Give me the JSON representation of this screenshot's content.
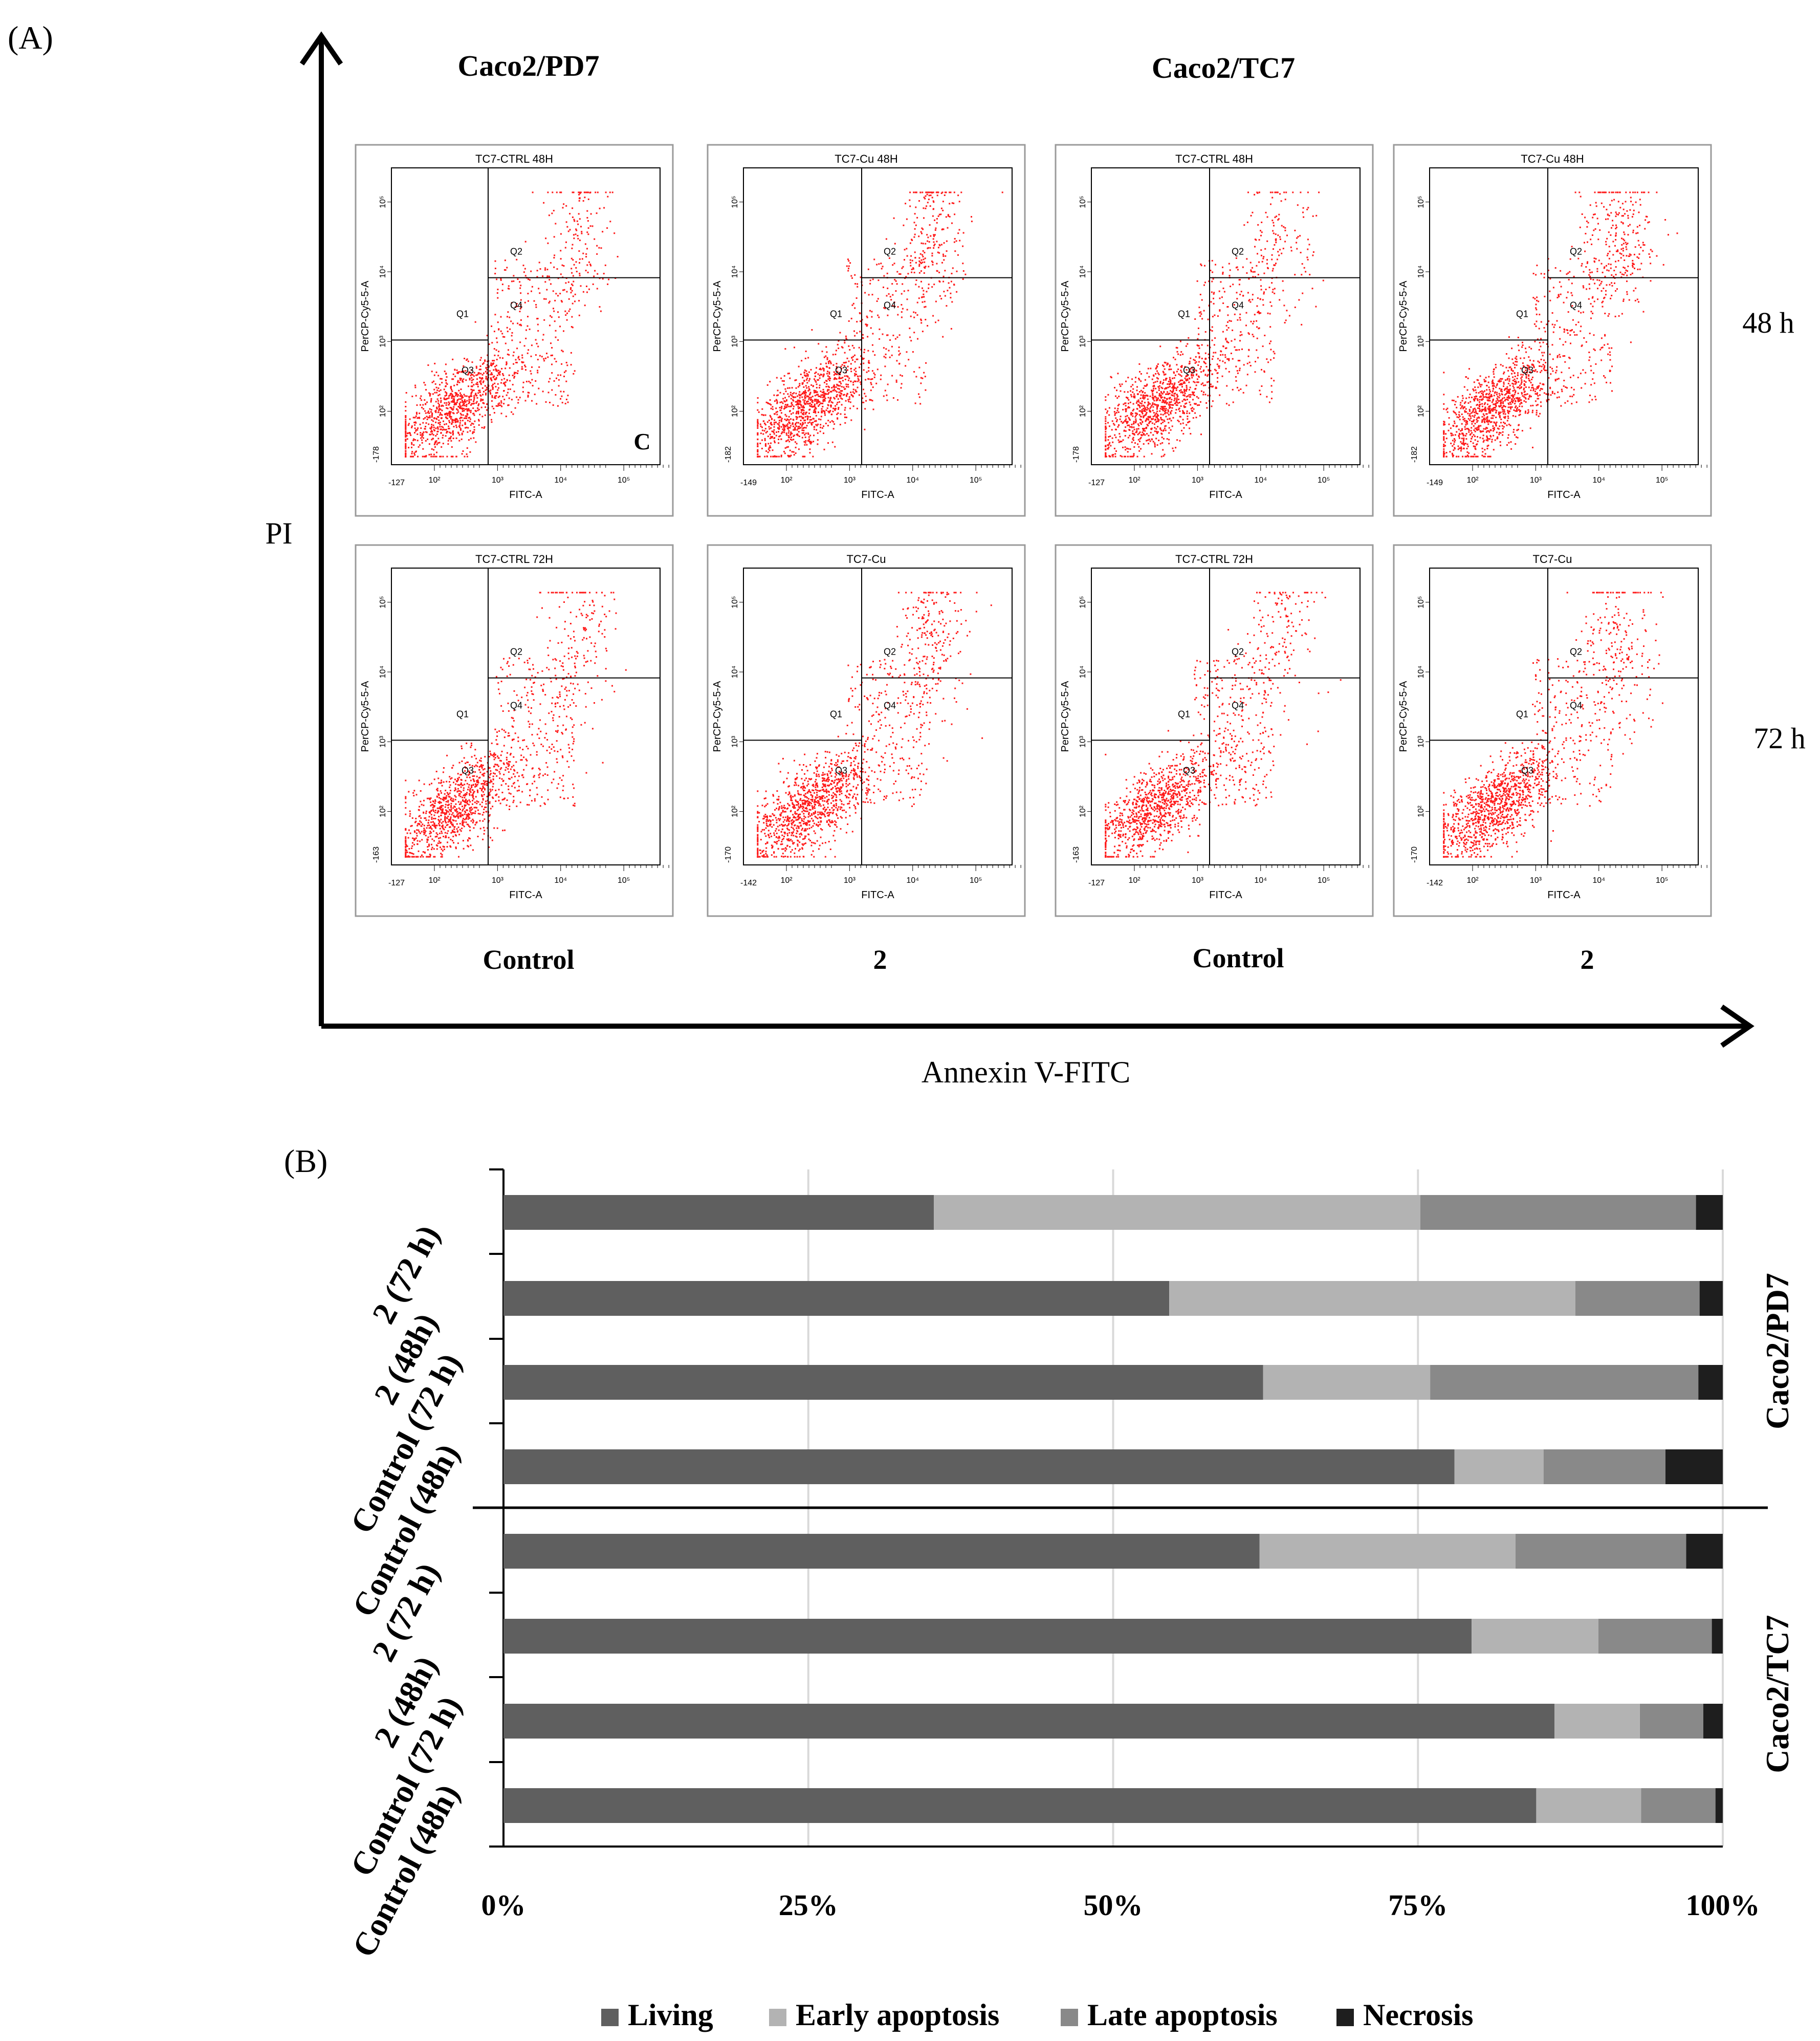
{
  "panel_a": {
    "label": "(A)",
    "group_titles": [
      "Caco2/PD7",
      "Caco2/TC7"
    ],
    "row_labels": [
      "48 h",
      "72 h"
    ],
    "column_labels": [
      "Control",
      "2",
      "Control",
      "2"
    ],
    "y_axis_label": "PI",
    "x_axis_label": "Annexin V-FITC",
    "corner_mark": "C",
    "quadrants": [
      "Q1",
      "Q2",
      "Q3",
      "Q4"
    ],
    "plot_x_axis": "FITC-A",
    "plot_y_axis": "PerCP-Cy5-5-A",
    "x_ticks": [
      "10²",
      "10³",
      "10⁴",
      "10⁵"
    ],
    "y_ticks": [
      "10²",
      "10³",
      "10⁴",
      "10⁵"
    ],
    "plots": [
      {
        "title": "TC7-CTRL 48H",
        "xmin": "-127",
        "ymin": "-178",
        "gate_x": 0.36,
        "gate_y1": 0.42,
        "gate_y2": 0.63,
        "cloud": "control"
      },
      {
        "title": "TC7-Cu 48H",
        "xmin": "-149",
        "ymin": "-182",
        "gate_x": 0.44,
        "gate_y1": 0.42,
        "gate_y2": 0.63,
        "cloud": "treated"
      },
      {
        "title": "TC7-CTRL 48H",
        "xmin": "-127",
        "ymin": "-178",
        "gate_x": 0.44,
        "gate_y1": 0.42,
        "gate_y2": 0.63,
        "cloud": "control"
      },
      {
        "title": "TC7-Cu 48H",
        "xmin": "-149",
        "ymin": "-182",
        "gate_x": 0.44,
        "gate_y1": 0.42,
        "gate_y2": 0.63,
        "cloud": "treated"
      },
      {
        "title": "TC7-CTRL 72H",
        "xmin": "-127",
        "ymin": "-163",
        "gate_x": 0.36,
        "gate_y1": 0.42,
        "gate_y2": 0.63,
        "cloud": "control"
      },
      {
        "title": "TC7-Cu",
        "xmin": "-142",
        "ymin": "-170",
        "gate_x": 0.44,
        "gate_y1": 0.42,
        "gate_y2": 0.63,
        "cloud": "treated"
      },
      {
        "title": "TC7-CTRL 72H",
        "xmin": "-127",
        "ymin": "-163",
        "gate_x": 0.44,
        "gate_y1": 0.42,
        "gate_y2": 0.63,
        "cloud": "control"
      },
      {
        "title": "TC7-Cu",
        "xmin": "-142",
        "ymin": "-170",
        "gate_x": 0.44,
        "gate_y1": 0.42,
        "gate_y2": 0.63,
        "cloud": "treated"
      }
    ]
  },
  "panel_b": {
    "label": "(B)",
    "group_labels": [
      "Caco2/PD7",
      "Caco2/TC7"
    ]
  },
  "colors": {
    "living": "#5f5f5f",
    "early": "#b3b3b3",
    "late": "#898989",
    "necrosis": "#1e1e1e",
    "dots": "#ff1a1a",
    "gridline": "#d9d9d9"
  },
  "chart_data": {
    "type": "bar",
    "orientation": "horizontal",
    "stacked": "percent",
    "categories": [
      "2 (72 h)",
      "2 (48h)",
      "Control (72 h)",
      "Control (48h)",
      "2 (72 h)",
      "2 (48h)",
      "Control (72 h)",
      "Control (48h)"
    ],
    "groups": [
      {
        "name": "Caco2/PD7",
        "categories": [
          "2 (72 h)",
          "2 (48h)",
          "Control (72 h)",
          "Control (48h)"
        ]
      },
      {
        "name": "Caco2/TC7",
        "categories": [
          "2 (72 h)",
          "2 (48h)",
          "Control (72 h)",
          "Control (48h)"
        ]
      }
    ],
    "series": [
      {
        "name": "Living",
        "values": [
          35.3,
          54.6,
          62.3,
          78.0,
          62.0,
          79.4,
          86.2,
          84.7
        ]
      },
      {
        "name": "Early apoptosis",
        "values": [
          39.9,
          33.3,
          13.7,
          7.3,
          21.0,
          10.4,
          7.0,
          8.6
        ]
      },
      {
        "name": "Late apoptosis",
        "values": [
          22.6,
          10.2,
          22.0,
          10.0,
          14.0,
          9.3,
          5.2,
          6.1
        ]
      },
      {
        "name": "Necrosis",
        "values": [
          2.2,
          1.9,
          2.0,
          4.7,
          3.0,
          0.9,
          1.6,
          0.6
        ]
      }
    ],
    "x_ticks": [
      "0%",
      "25%",
      "50%",
      "75%",
      "100%"
    ],
    "xlim": [
      0,
      100
    ],
    "legend_position": "bottom",
    "grid": true
  }
}
